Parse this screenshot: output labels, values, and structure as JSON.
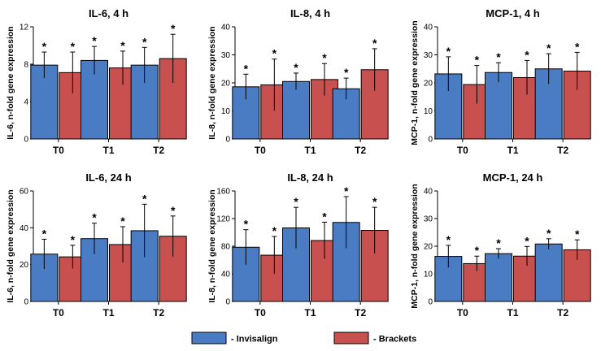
{
  "colors": {
    "invisalign": "#4A7CC3",
    "brackets": "#C8504E",
    "axis": "#000000",
    "background": "#ffffff"
  },
  "legend": {
    "invisalign_label": "- Invisalign",
    "brackets_label": "- Brackets"
  },
  "significance_marker": "*",
  "chart_data": [
    {
      "type": "bar",
      "title": "IL-6, 4 h",
      "ylabel": "IL-6, n-fold gene expression",
      "xlabel": "",
      "categories": [
        "T0",
        "T1",
        "T2"
      ],
      "ylim": [
        0,
        12
      ],
      "yticks": [
        0,
        4,
        8,
        12
      ],
      "series": [
        {
          "name": "Invisalign",
          "values": [
            7.9,
            8.4,
            7.9
          ],
          "errors": [
            1.4,
            1.5,
            1.9
          ],
          "significant": [
            true,
            true,
            true
          ]
        },
        {
          "name": "Brackets",
          "values": [
            7.1,
            7.6,
            8.6
          ],
          "errors": [
            2.2,
            1.8,
            2.6
          ],
          "significant": [
            true,
            true,
            true
          ]
        }
      ]
    },
    {
      "type": "bar",
      "title": "IL-8, 4 h",
      "ylabel": "IL-8, n-fold gene expression",
      "xlabel": "",
      "categories": [
        "T0",
        "T1",
        "T2"
      ],
      "ylim": [
        0,
        40
      ],
      "yticks": [
        0,
        10,
        20,
        30,
        40
      ],
      "series": [
        {
          "name": "Invisalign",
          "values": [
            18.6,
            20.5,
            17.9
          ],
          "errors": [
            4.5,
            3.0,
            3.8
          ],
          "significant": [
            true,
            true,
            true
          ]
        },
        {
          "name": "Brackets",
          "values": [
            19.3,
            21.2,
            24.7
          ],
          "errors": [
            9.2,
            5.7,
            7.5
          ],
          "significant": [
            true,
            true,
            true
          ]
        }
      ]
    },
    {
      "type": "bar",
      "title": "MCP-1, 4 h",
      "ylabel": "MCP-1, n-fold gene expression",
      "xlabel": "",
      "categories": [
        "T0",
        "T1",
        "T2"
      ],
      "ylim": [
        0,
        40
      ],
      "yticks": [
        0,
        10,
        20,
        30,
        40
      ],
      "series": [
        {
          "name": "Invisalign",
          "values": [
            23.2,
            23.7,
            25.0
          ],
          "errors": [
            6.1,
            3.5,
            5.4
          ],
          "significant": [
            true,
            true,
            true
          ]
        },
        {
          "name": "Brackets",
          "values": [
            19.4,
            21.9,
            24.2
          ],
          "errors": [
            6.8,
            6.1,
            6.7
          ],
          "significant": [
            true,
            true,
            true
          ]
        }
      ]
    },
    {
      "type": "bar",
      "title": "IL-6, 24 h",
      "ylabel": "IL-6, n-fold gene expression",
      "xlabel": "",
      "categories": [
        "T0",
        "T1",
        "T2"
      ],
      "ylim": [
        0,
        60
      ],
      "yticks": [
        0,
        20,
        40,
        60
      ],
      "series": [
        {
          "name": "Invisalign",
          "values": [
            25.7,
            34.1,
            38.4
          ],
          "errors": [
            8.1,
            8.4,
            14.4
          ],
          "significant": [
            true,
            true,
            true
          ]
        },
        {
          "name": "Brackets",
          "values": [
            24.2,
            30.9,
            35.4
          ],
          "errors": [
            6.3,
            9.7,
            11.0
          ],
          "significant": [
            true,
            true,
            true
          ]
        }
      ]
    },
    {
      "type": "bar",
      "title": "IL-8, 24 h",
      "ylabel": "IL-8, n-fold gene expression",
      "xlabel": "",
      "categories": [
        "T0",
        "T1",
        "T2"
      ],
      "ylim": [
        0,
        160
      ],
      "yticks": [
        0,
        40,
        80,
        120,
        160
      ],
      "series": [
        {
          "name": "Invisalign",
          "values": [
            78.5,
            106.5,
            114.4
          ],
          "errors": [
            25.4,
            29.8,
            37.4
          ],
          "significant": [
            true,
            true,
            true
          ]
        },
        {
          "name": "Brackets",
          "values": [
            67.0,
            88.2,
            102.9
          ],
          "errors": [
            27.1,
            26.6,
            33.4
          ],
          "significant": [
            true,
            true,
            true
          ]
        }
      ]
    },
    {
      "type": "bar",
      "title": "MCP-1, 24 h",
      "ylabel": "MCP-1, n-fold gene expression",
      "xlabel": "",
      "categories": [
        "T0",
        "T1",
        "T2"
      ],
      "ylim": [
        0,
        40
      ],
      "yticks": [
        0,
        10,
        20,
        30,
        40
      ],
      "series": [
        {
          "name": "Invisalign",
          "values": [
            16.3,
            17.3,
            20.8
          ],
          "errors": [
            4.0,
            1.8,
            1.9
          ],
          "significant": [
            true,
            true,
            true
          ]
        },
        {
          "name": "Brackets",
          "values": [
            13.7,
            16.4,
            18.7
          ],
          "errors": [
            2.7,
            3.5,
            3.6
          ],
          "significant": [
            true,
            true,
            true
          ]
        }
      ]
    }
  ]
}
